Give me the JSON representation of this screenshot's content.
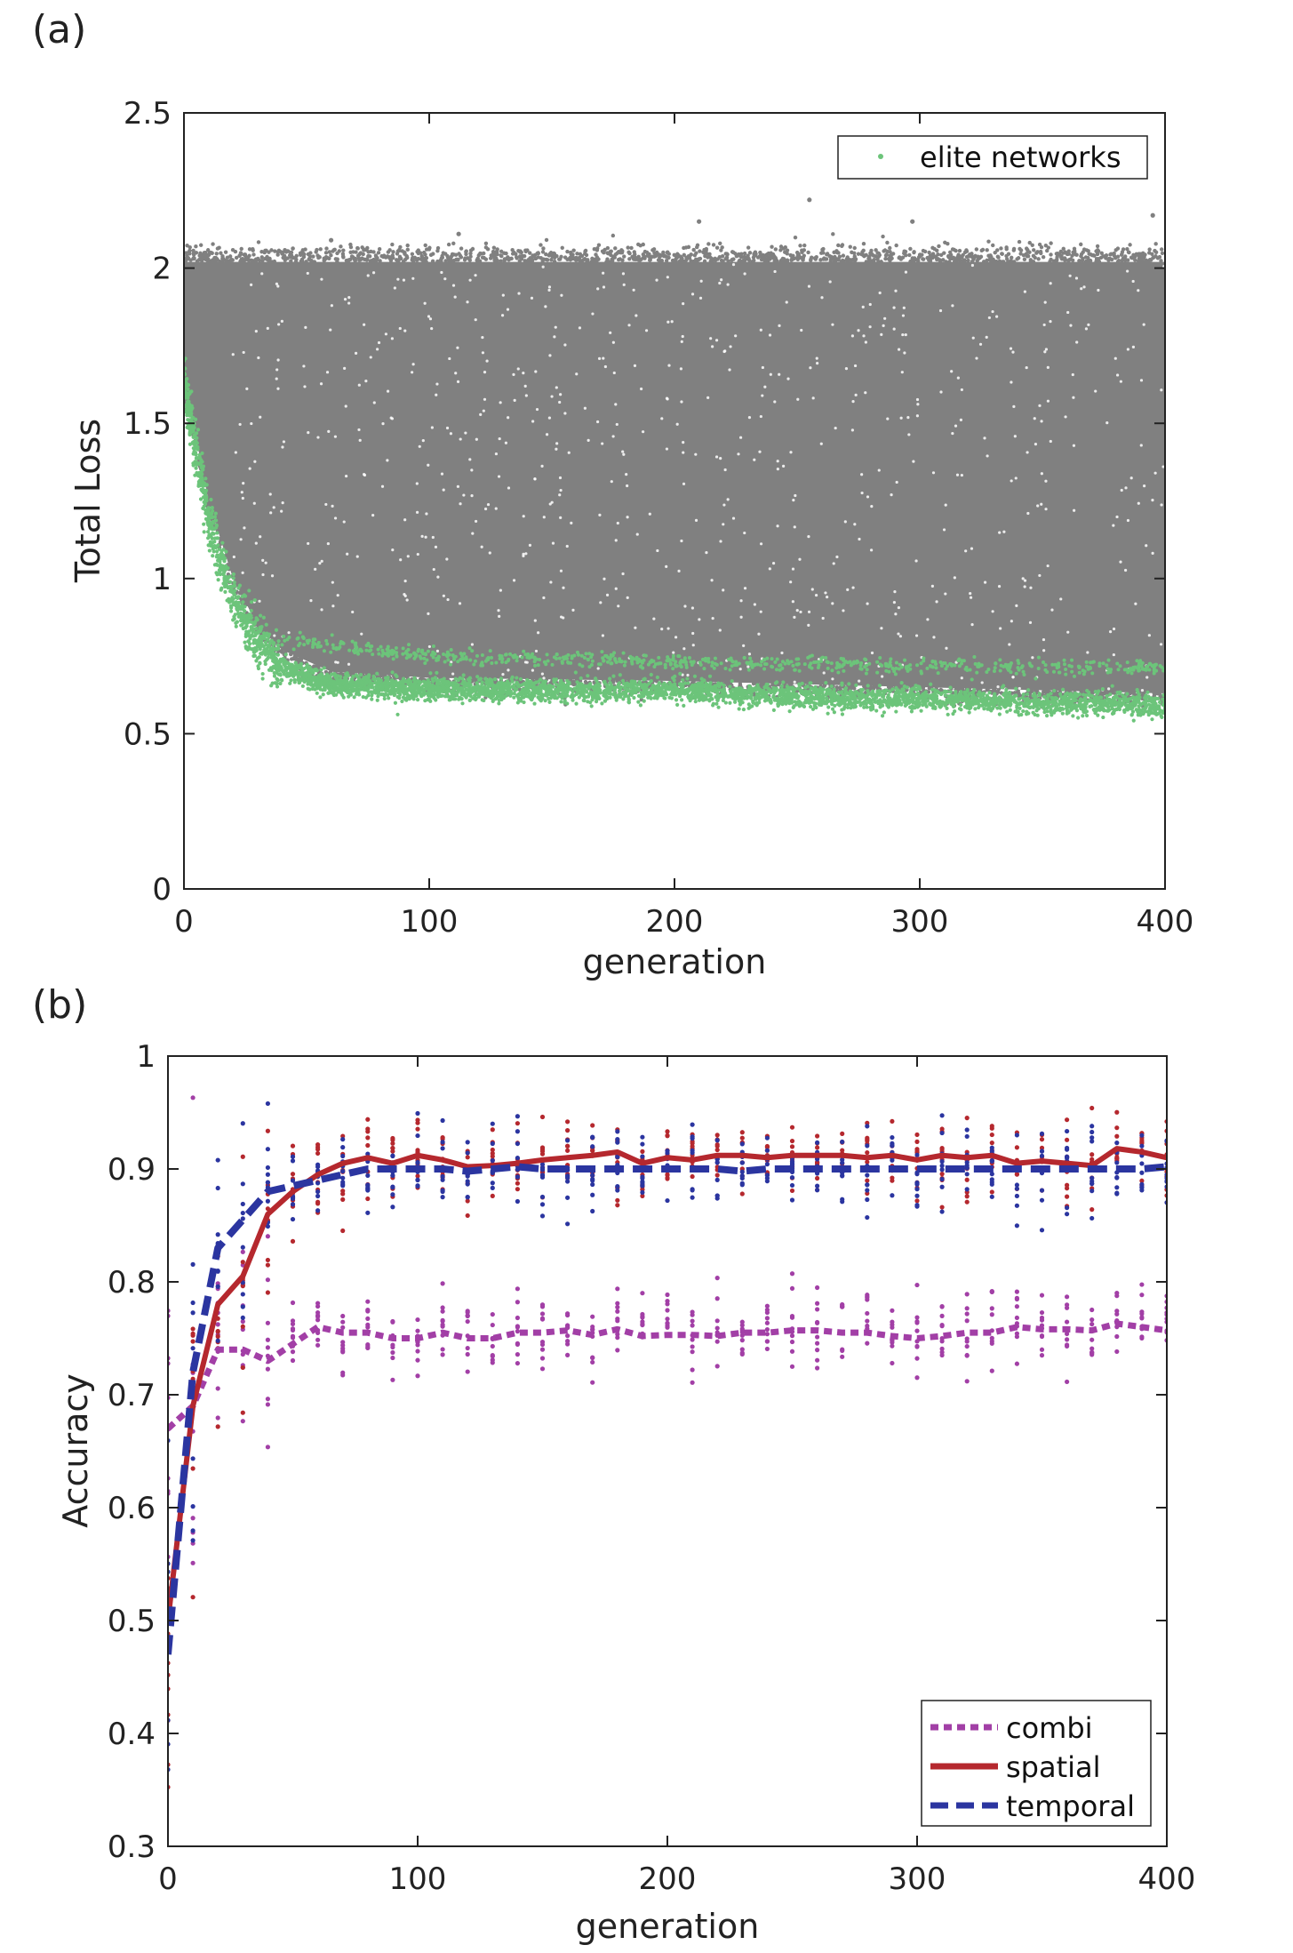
{
  "panels": {
    "a": {
      "letter": "(a)"
    },
    "b": {
      "letter": "(b)"
    }
  },
  "colors": {
    "population": "#808080",
    "elite": "#6cc47a",
    "combi": "#a23fa6",
    "spatial": "#b5282e",
    "temporal": "#2b35a0",
    "axis": "#222222"
  },
  "chart_data": [
    {
      "id": "a",
      "type": "scatter",
      "xlabel": "generation",
      "ylabel": "Total Loss",
      "xlim": [
        0,
        400
      ],
      "ylim": [
        0,
        2.5
      ],
      "xticks": [
        0,
        100,
        200,
        300,
        400
      ],
      "yticks": [
        0,
        0.5,
        1,
        1.5,
        2,
        2.5
      ],
      "grid": false,
      "legend_position": "top-right",
      "series": [
        {
          "name": "",
          "kind": "population-band",
          "color": "#808080",
          "upper": [
            [
              0,
              2.02
            ],
            [
              400,
              2.02
            ]
          ],
          "lower": [
            [
              0,
              1.6
            ],
            [
              5,
              1.45
            ],
            [
              10,
              1.25
            ],
            [
              20,
              1.0
            ],
            [
              30,
              0.85
            ],
            [
              40,
              0.77
            ],
            [
              60,
              0.7
            ],
            [
              100,
              0.68
            ],
            [
              200,
              0.67
            ],
            [
              300,
              0.65
            ],
            [
              400,
              0.63
            ]
          ],
          "outliers": [
            [
              255,
              2.22
            ],
            [
              297,
              2.15
            ],
            [
              395,
              2.17
            ],
            [
              210,
              2.15
            ],
            [
              112,
              2.11
            ],
            [
              60,
              2.09
            ]
          ]
        },
        {
          "name": "elite networks",
          "kind": "elite-band",
          "color": "#6cc47a",
          "center": [
            [
              0,
              1.64
            ],
            [
              5,
              1.4
            ],
            [
              10,
              1.2
            ],
            [
              15,
              1.05
            ],
            [
              20,
              0.93
            ],
            [
              30,
              0.8
            ],
            [
              40,
              0.72
            ],
            [
              50,
              0.68
            ],
            [
              60,
              0.66
            ],
            [
              80,
              0.65
            ],
            [
              100,
              0.645
            ],
            [
              150,
              0.64
            ],
            [
              200,
              0.64
            ],
            [
              250,
              0.62
            ],
            [
              300,
              0.61
            ],
            [
              350,
              0.6
            ],
            [
              400,
              0.59
            ]
          ],
          "secondary": [
            [
              50,
              0.8
            ],
            [
              100,
              0.75
            ],
            [
              200,
              0.73
            ],
            [
              300,
              0.72
            ],
            [
              400,
              0.71
            ]
          ]
        }
      ]
    },
    {
      "id": "b",
      "type": "line",
      "xlabel": "generation",
      "ylabel": "Accuracy",
      "xlim": [
        0,
        400
      ],
      "ylim": [
        0.3,
        1
      ],
      "xticks": [
        0,
        100,
        200,
        300,
        400
      ],
      "yticks": [
        0.3,
        0.4,
        0.5,
        0.6,
        0.7,
        0.8,
        0.9,
        1
      ],
      "grid": false,
      "legend_position": "bottom-right",
      "x": [
        0,
        10,
        20,
        30,
        40,
        50,
        60,
        70,
        80,
        90,
        100,
        110,
        120,
        130,
        140,
        150,
        160,
        170,
        180,
        190,
        200,
        210,
        220,
        230,
        240,
        250,
        260,
        270,
        280,
        290,
        300,
        310,
        320,
        330,
        340,
        350,
        360,
        370,
        380,
        390,
        400
      ],
      "series": [
        {
          "name": "combi",
          "style": "dotted",
          "color": "#a23fa6",
          "values": [
            0.67,
            0.69,
            0.74,
            0.74,
            0.73,
            0.745,
            0.76,
            0.755,
            0.755,
            0.75,
            0.75,
            0.755,
            0.75,
            0.75,
            0.755,
            0.755,
            0.757,
            0.753,
            0.758,
            0.752,
            0.753,
            0.753,
            0.752,
            0.755,
            0.755,
            0.757,
            0.757,
            0.755,
            0.755,
            0.752,
            0.75,
            0.752,
            0.755,
            0.755,
            0.76,
            0.758,
            0.758,
            0.757,
            0.763,
            0.76,
            0.757
          ]
        },
        {
          "name": "spatial",
          "style": "solid",
          "color": "#b5282e",
          "values": [
            0.5,
            0.69,
            0.78,
            0.805,
            0.86,
            0.88,
            0.895,
            0.905,
            0.91,
            0.905,
            0.912,
            0.908,
            0.902,
            0.903,
            0.905,
            0.908,
            0.91,
            0.912,
            0.915,
            0.905,
            0.91,
            0.908,
            0.912,
            0.912,
            0.91,
            0.912,
            0.912,
            0.912,
            0.91,
            0.912,
            0.908,
            0.912,
            0.91,
            0.912,
            0.905,
            0.907,
            0.905,
            0.903,
            0.918,
            0.915,
            0.91
          ]
        },
        {
          "name": "temporal",
          "style": "dashed",
          "color": "#2b35a0",
          "values": [
            0.47,
            0.72,
            0.83,
            0.855,
            0.88,
            0.885,
            0.89,
            0.895,
            0.9,
            0.9,
            0.9,
            0.9,
            0.898,
            0.9,
            0.902,
            0.9,
            0.9,
            0.9,
            0.9,
            0.9,
            0.9,
            0.9,
            0.9,
            0.898,
            0.9,
            0.9,
            0.9,
            0.9,
            0.9,
            0.9,
            0.9,
            0.9,
            0.9,
            0.9,
            0.9,
            0.9,
            0.9,
            0.9,
            0.9,
            0.9,
            0.902
          ]
        }
      ]
    }
  ]
}
